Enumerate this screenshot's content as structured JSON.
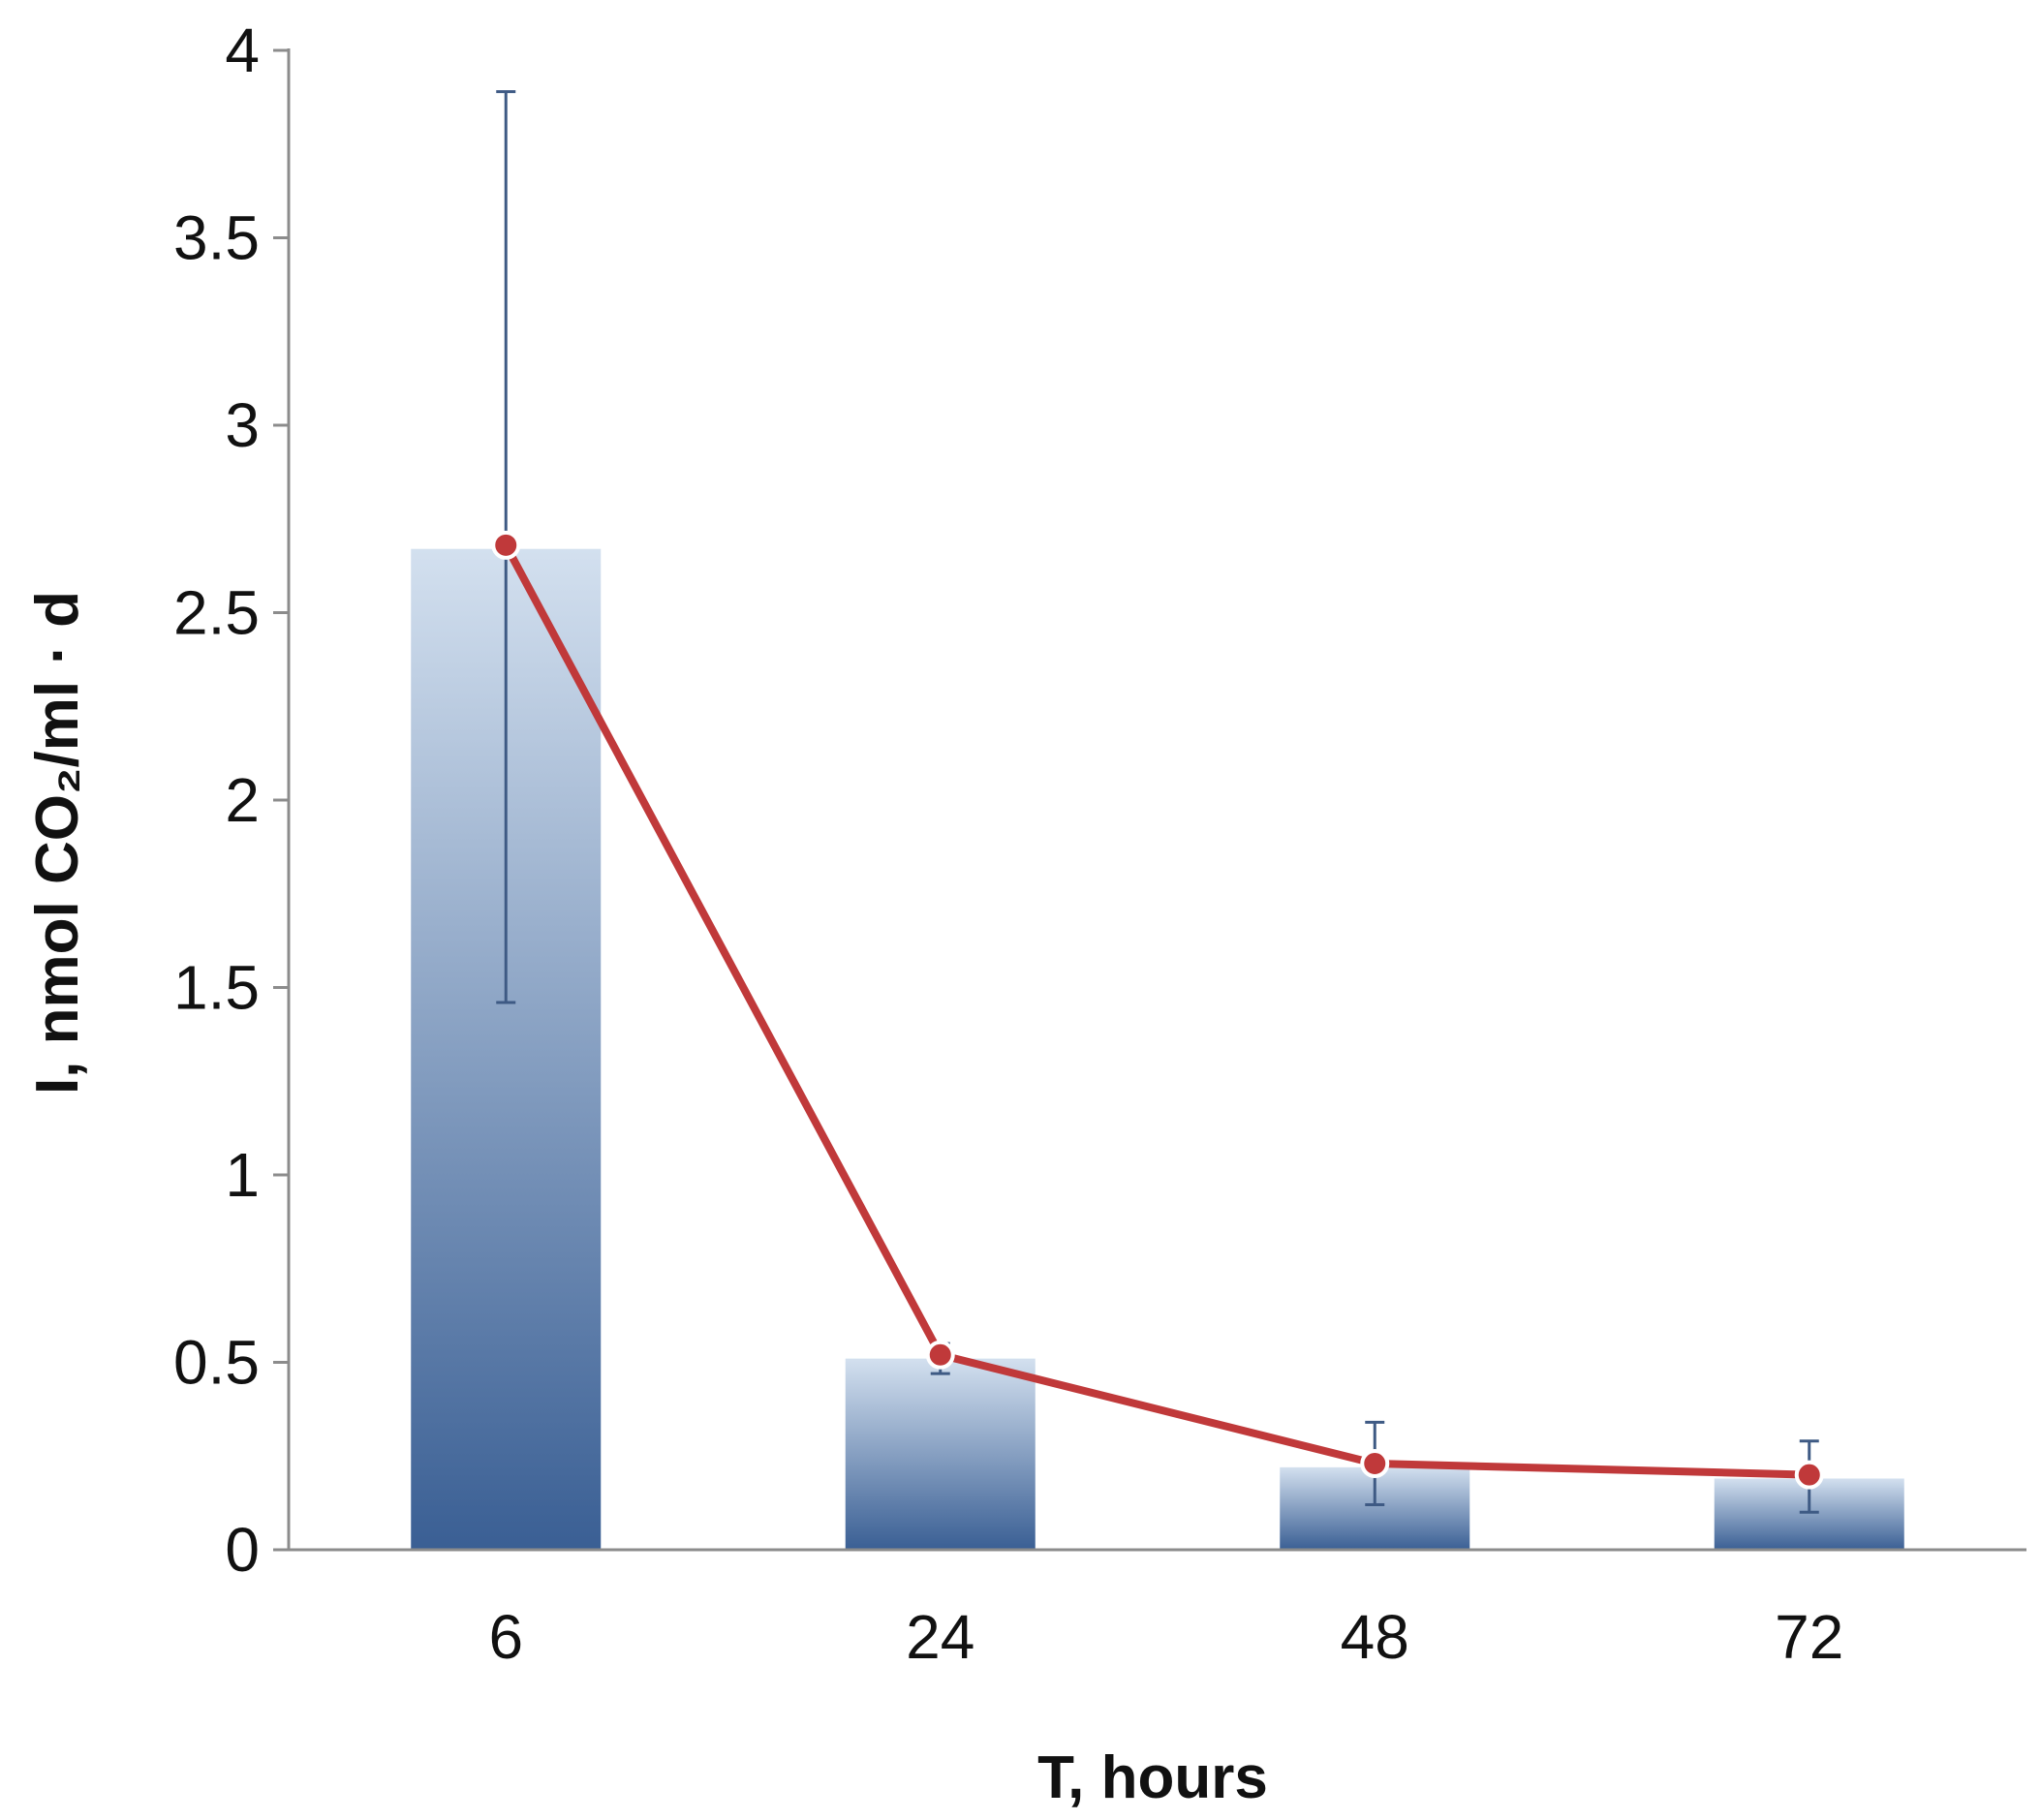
{
  "chart_data": {
    "type": "bar",
    "categories": [
      "6",
      "24",
      "48",
      "72"
    ],
    "values": [
      2.67,
      0.51,
      0.22,
      0.19
    ],
    "error_bars": [
      {
        "low": 1.46,
        "high": 3.89
      },
      {
        "low": 0.47,
        "high": 0.55
      },
      {
        "low": 0.12,
        "high": 0.34
      },
      {
        "low": 0.1,
        "high": 0.29
      }
    ],
    "line_overlay": [
      2.68,
      0.52,
      0.23,
      0.2
    ],
    "xlabel": "T, hours",
    "ylabel": "I, nmol CO₂/ml · d",
    "ylim": [
      0,
      4
    ],
    "yticks": [
      "0",
      "0.5",
      "1",
      "1.5",
      "2",
      "2.5",
      "3",
      "3.5",
      "4"
    ],
    "grid": false,
    "colors": {
      "bar_top": "#d3e0ef",
      "bar_bottom": "#3a5f94",
      "line": "#c0393a",
      "marker_fill": "#c0393a",
      "marker_edge": "#ffffff",
      "error_bar": "#3e5a84",
      "axis": "#8c8c8c"
    }
  }
}
